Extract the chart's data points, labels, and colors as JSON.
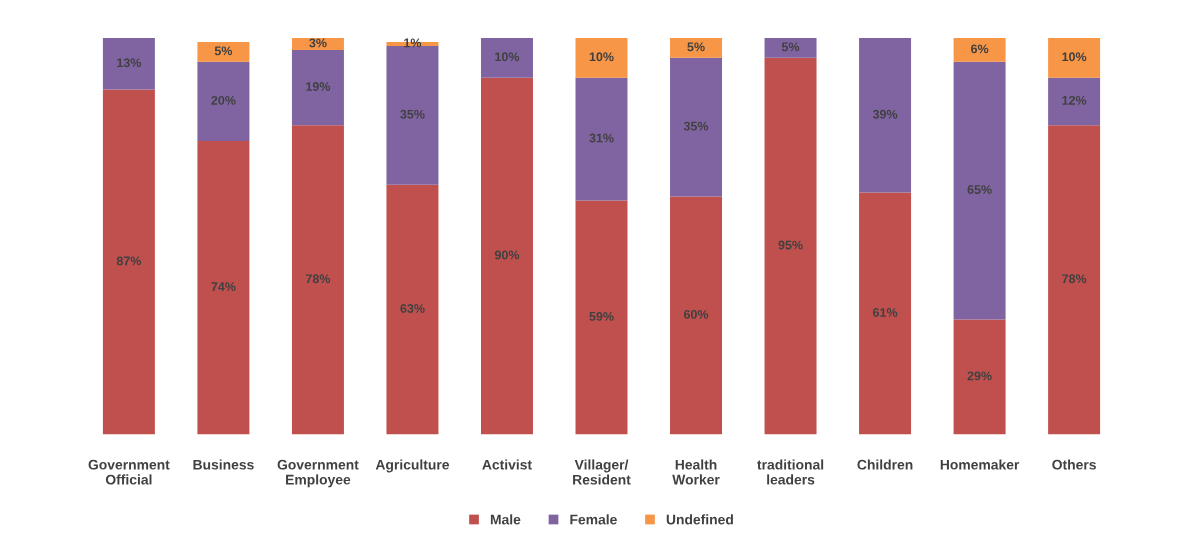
{
  "chart_data": {
    "type": "bar",
    "stacked": true,
    "categories": [
      "Government\nOfficial",
      "Business",
      "Government\nEmployee",
      "Agriculture",
      "Activist",
      "Villager/\nResident",
      "Health\nWorker",
      "traditional\nleaders",
      "Children",
      "Homemaker",
      "Others"
    ],
    "series": [
      {
        "name": "Male",
        "color": "#c0504d",
        "values": [
          87,
          74,
          78,
          63,
          90,
          59,
          60,
          95,
          61,
          29,
          78
        ],
        "value_labels": [
          "87%",
          "74%",
          "78%",
          "63%",
          "90%",
          "59%",
          "60%",
          "95%",
          "61%",
          "29%",
          "78%"
        ]
      },
      {
        "name": "Female",
        "color": "#8064a2",
        "values": [
          13,
          20,
          19,
          35,
          10,
          31,
          35,
          5,
          39,
          65,
          12
        ],
        "value_labels": [
          "13%",
          "20%",
          "19%",
          "35%",
          "10%",
          "31%",
          "35%",
          "5%",
          "39%",
          "65%",
          "12%"
        ]
      },
      {
        "name": "Undefined",
        "color": "#f79646",
        "values": [
          null,
          5,
          3,
          1,
          null,
          10,
          5,
          null,
          null,
          6,
          10
        ],
        "value_labels": [
          null,
          "5%",
          "3%",
          "1%",
          null,
          "10%",
          "5%",
          null,
          null,
          "6%",
          "10%"
        ]
      }
    ],
    "legend": "bottom",
    "grid": false
  }
}
